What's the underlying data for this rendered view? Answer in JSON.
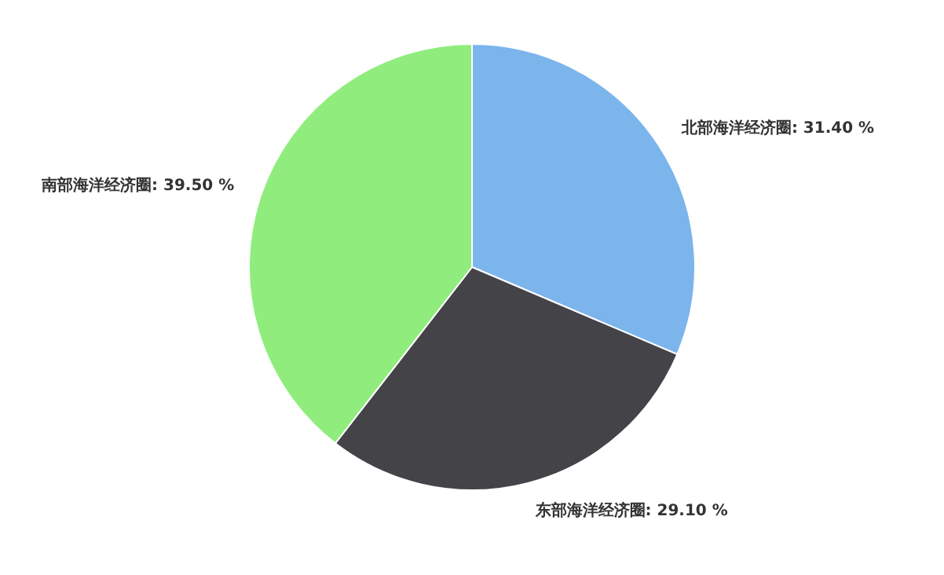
{
  "chart_data": {
    "type": "pie",
    "categories": [
      "北部海洋经济圈",
      "东部海洋经济圈",
      "南部海洋经济圈"
    ],
    "values": [
      31.4,
      29.1,
      39.5
    ],
    "value_labels": [
      "31.40 %",
      "29.10 %",
      "39.50 %"
    ],
    "colors": [
      "#7cb5ec",
      "#434348",
      "#90ed7d"
    ]
  }
}
